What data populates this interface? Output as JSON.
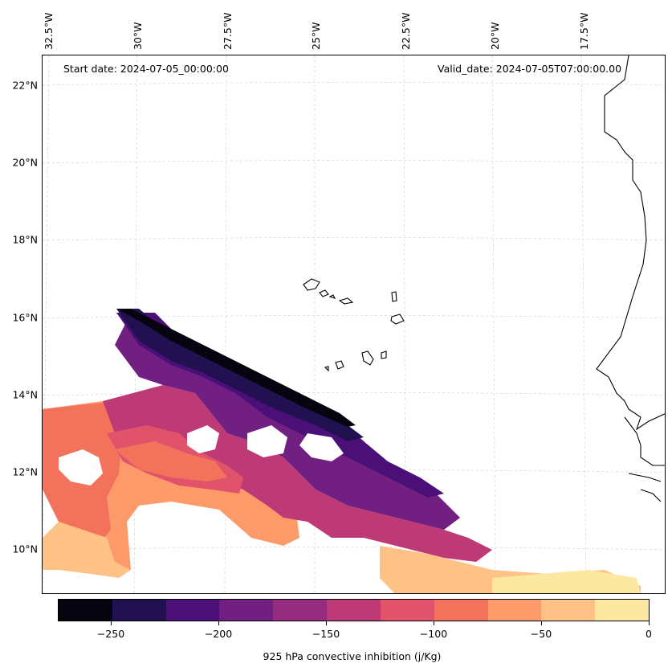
{
  "header": {
    "start_date": "Start date: 2024-07-05_00:00:00",
    "valid_date": "Valid_date: 2024-07-05T07:00:00.00"
  },
  "map": {
    "lat_labels": [
      "22°N",
      "20°N",
      "18°N",
      "16°N",
      "14°N",
      "12°N",
      "10°N"
    ],
    "lon_labels": [
      "32.5°W",
      "30°W",
      "27.5°W",
      "25°W",
      "22.5°W",
      "20°W",
      "17.5°W"
    ],
    "gridlines": true,
    "coastline_color": "#000000",
    "field": "925 hPa convective inhibition"
  },
  "colorbar": {
    "label": "925 hPa convective inhibition (j/Kg)",
    "tick_labels": [
      "−250",
      "−200",
      "−150",
      "−100",
      "−50",
      "0"
    ],
    "levels": [
      -275,
      -250,
      -225,
      -200,
      -175,
      -150,
      -125,
      -100,
      -75,
      -50,
      -25,
      0
    ],
    "colors": [
      "#05040f",
      "#221150",
      "#4b0f78",
      "#711f81",
      "#952c80",
      "#be3a76",
      "#e0536a",
      "#f3725c",
      "#fc9a6a",
      "#fec287",
      "#fde8a1"
    ]
  }
}
